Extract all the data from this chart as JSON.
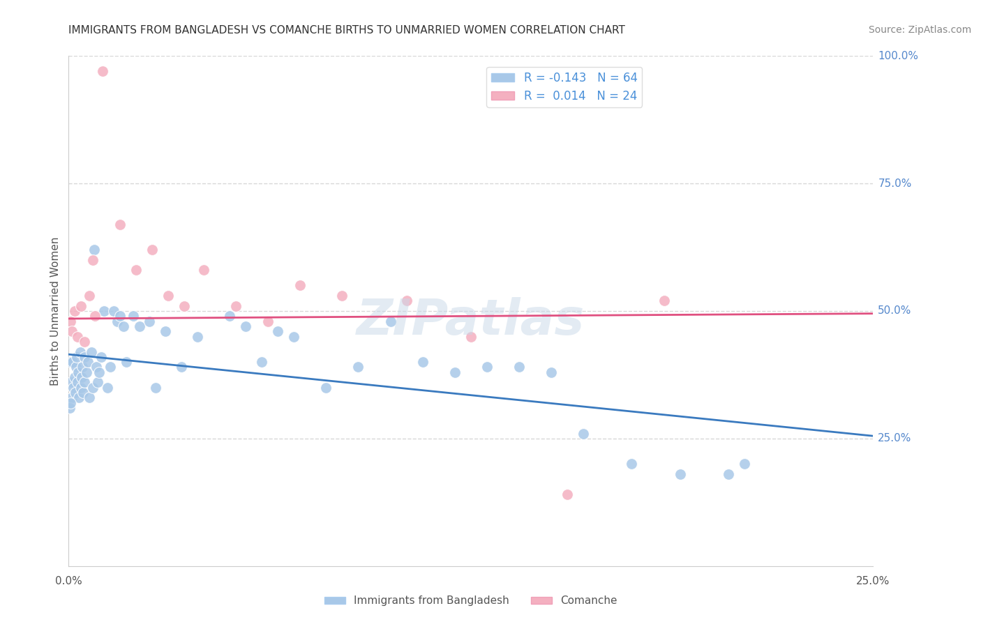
{
  "title": "IMMIGRANTS FROM BANGLADESH VS COMANCHE BIRTHS TO UNMARRIED WOMEN CORRELATION CHART",
  "source": "Source: ZipAtlas.com",
  "ylabel": "Births to Unmarried Women",
  "legend_label1": "Immigrants from Bangladesh",
  "legend_label2": "Comanche",
  "r1": -0.143,
  "n1": 64,
  "r2": 0.014,
  "n2": 24,
  "xlim": [
    0.0,
    25.0
  ],
  "ylim": [
    0.0,
    100.0
  ],
  "color_blue": "#a8c8e8",
  "color_pink": "#f4b0c0",
  "line_blue": "#3a7abf",
  "line_pink": "#e05080",
  "watermark": "ZIPatlas",
  "background_color": "#ffffff",
  "grid_color": "#d8d8d8",
  "blue_x": [
    0.05,
    0.08,
    0.1,
    0.12,
    0.15,
    0.18,
    0.2,
    0.22,
    0.25,
    0.28,
    0.3,
    0.32,
    0.35,
    0.38,
    0.4,
    0.42,
    0.45,
    0.48,
    0.5,
    0.55,
    0.6,
    0.65,
    0.7,
    0.75,
    0.8,
    0.85,
    0.9,
    0.95,
    1.0,
    1.1,
    1.2,
    1.3,
    1.4,
    1.5,
    1.6,
    1.7,
    1.8,
    2.0,
    2.2,
    2.5,
    2.7,
    3.0,
    3.5,
    4.0,
    5.0,
    5.5,
    6.0,
    6.5,
    7.0,
    8.0,
    9.0,
    10.0,
    11.0,
    12.0,
    13.0,
    14.0,
    15.0,
    16.0,
    17.5,
    19.0,
    20.5,
    21.0,
    0.03,
    0.06
  ],
  "blue_y": [
    40,
    36,
    33,
    40,
    35,
    37,
    34,
    39,
    41,
    36,
    38,
    33,
    42,
    35,
    37,
    39,
    34,
    41,
    36,
    38,
    40,
    33,
    42,
    35,
    62,
    39,
    36,
    38,
    41,
    50,
    35,
    39,
    50,
    48,
    49,
    47,
    40,
    49,
    47,
    48,
    35,
    46,
    39,
    45,
    49,
    47,
    40,
    46,
    45,
    35,
    39,
    48,
    40,
    38,
    39,
    39,
    38,
    26,
    20,
    18,
    18,
    20,
    31,
    32
  ],
  "pink_x": [
    0.05,
    0.1,
    0.18,
    0.28,
    0.38,
    0.5,
    0.65,
    0.82,
    1.05,
    1.6,
    2.1,
    2.6,
    3.1,
    3.6,
    4.2,
    5.2,
    6.2,
    7.2,
    8.5,
    10.5,
    12.5,
    15.5,
    18.5,
    0.75
  ],
  "pink_y": [
    48,
    46,
    50,
    45,
    51,
    44,
    53,
    49,
    97,
    67,
    58,
    62,
    53,
    51,
    58,
    51,
    48,
    55,
    53,
    52,
    45,
    14,
    52,
    60
  ],
  "blue_trend": [
    41.5,
    25.5
  ],
  "pink_trend": [
    48.5,
    49.5
  ]
}
